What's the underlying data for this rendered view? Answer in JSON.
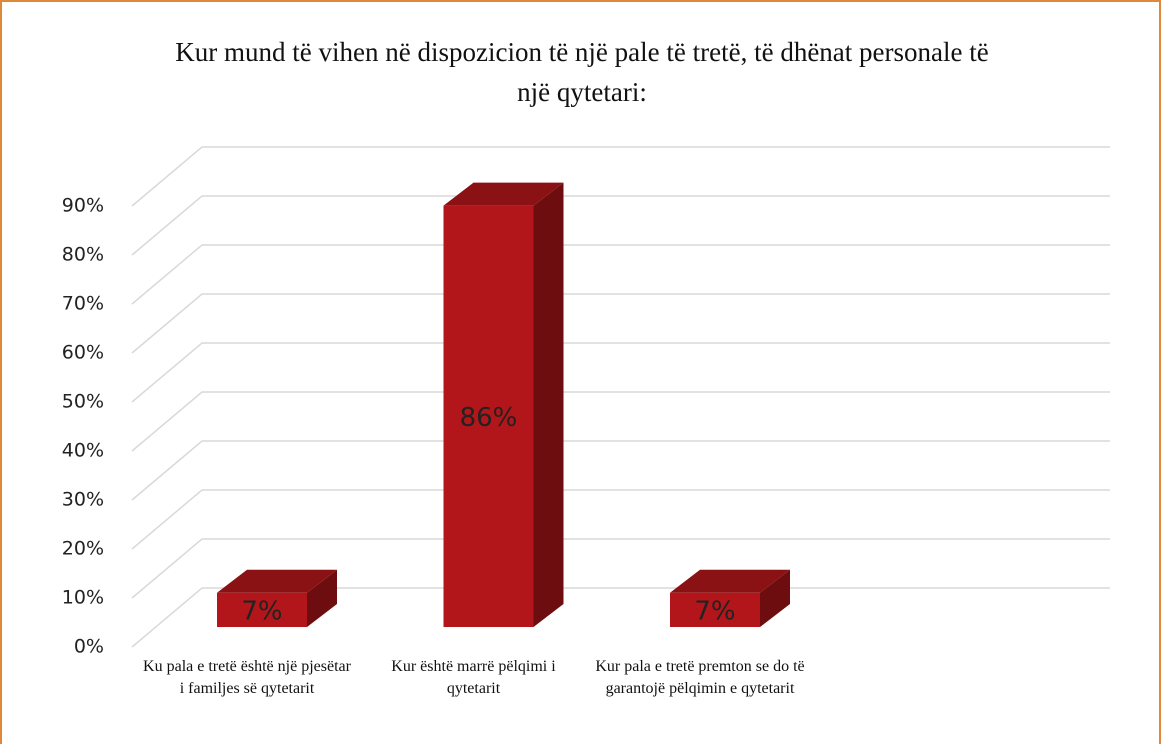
{
  "chart_data": {
    "type": "bar3d",
    "title": "Kur mund të vihen në dispozicion të një pale të tretë, të dhënat personale të një qytetari:",
    "categories": [
      "Ku pala e tretë është një pjesëtar i familjes së qytetarit",
      "Kur është marrë pëlqimi i qytetarit",
      "Kur pala e tretë premton se do të garantojë pëlqimin e qytetarit"
    ],
    "values": [
      7,
      86,
      7
    ],
    "value_labels": [
      "7%",
      "86%",
      "7%"
    ],
    "color": "#b3161a",
    "ylim": [
      0,
      90
    ],
    "yticks": [
      {
        "value": 0,
        "label": "0%"
      },
      {
        "value": 10,
        "label": "10%"
      },
      {
        "value": 20,
        "label": "20%"
      },
      {
        "value": 30,
        "label": "30%"
      },
      {
        "value": 40,
        "label": "40%"
      },
      {
        "value": 50,
        "label": "50%"
      },
      {
        "value": 60,
        "label": "60%"
      },
      {
        "value": 70,
        "label": "70%"
      },
      {
        "value": 80,
        "label": "80%"
      },
      {
        "value": 90,
        "label": "90%"
      }
    ],
    "grid": true
  }
}
